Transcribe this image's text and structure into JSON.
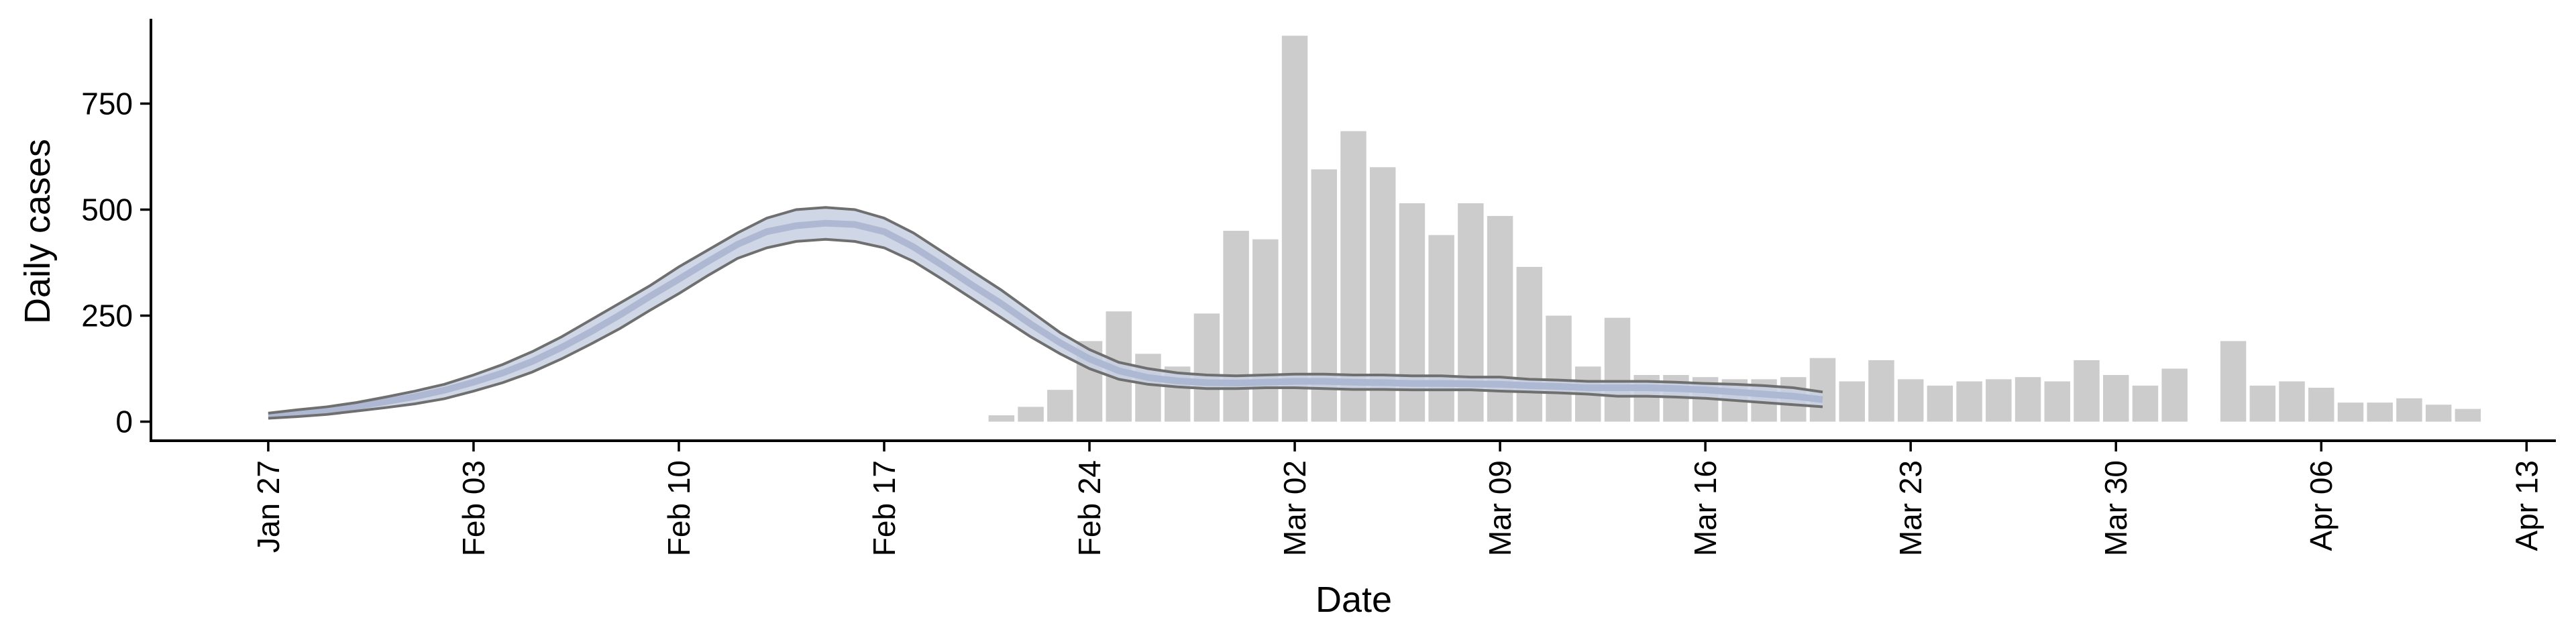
{
  "chart_data": {
    "type": "bar",
    "xlabel": "Date",
    "ylabel": "Daily cases",
    "x_ticks": [
      "Jan 27",
      "Feb 03",
      "Feb 10",
      "Feb 17",
      "Feb 24",
      "Mar 02",
      "Mar 09",
      "Mar 16",
      "Mar 23",
      "Mar 30",
      "Apr 06",
      "Apr 13"
    ],
    "xlim": [
      "2020-01-23",
      "2020-04-14"
    ],
    "y_ticks": [
      0,
      250,
      500,
      750
    ],
    "ylim": [
      -45,
      950
    ],
    "bars": {
      "start_date": "2020-02-21",
      "values": [
        15,
        35,
        75,
        190,
        260,
        160,
        130,
        255,
        450,
        430,
        910,
        595,
        685,
        600,
        515,
        440,
        515,
        485,
        365,
        250,
        130,
        245,
        110,
        110,
        105,
        100,
        100,
        105,
        150,
        95,
        145,
        100,
        85,
        95,
        100,
        105,
        95,
        145,
        110,
        85,
        125,
        0,
        190,
        85,
        95,
        80,
        45,
        45,
        55,
        40,
        30
      ]
    },
    "estimate": {
      "start_date": "2020-01-27",
      "upper": [
        20,
        28,
        35,
        45,
        58,
        72,
        88,
        110,
        135,
        165,
        200,
        240,
        280,
        320,
        365,
        405,
        445,
        480,
        500,
        505,
        500,
        480,
        445,
        400,
        355,
        310,
        260,
        210,
        170,
        140,
        125,
        115,
        110,
        108,
        110,
        112,
        112,
        110,
        110,
        108,
        108,
        105,
        105,
        100,
        98,
        95,
        95,
        95,
        93,
        90,
        88,
        85,
        80,
        70
      ],
      "median": [
        14,
        20,
        27,
        36,
        47,
        59,
        74,
        93,
        115,
        142,
        175,
        212,
        252,
        295,
        336,
        378,
        418,
        448,
        462,
        468,
        465,
        448,
        412,
        368,
        322,
        278,
        230,
        186,
        148,
        120,
        104,
        96,
        92,
        91,
        93,
        95,
        95,
        93,
        92,
        90,
        90,
        89,
        88,
        85,
        83,
        80,
        80,
        80,
        78,
        75,
        70,
        65,
        60,
        52
      ],
      "lower": [
        8,
        12,
        17,
        25,
        33,
        42,
        54,
        72,
        92,
        117,
        148,
        183,
        220,
        262,
        302,
        345,
        385,
        410,
        425,
        430,
        425,
        410,
        378,
        335,
        290,
        245,
        200,
        160,
        125,
        100,
        88,
        82,
        78,
        78,
        80,
        80,
        78,
        76,
        76,
        75,
        75,
        75,
        72,
        70,
        68,
        65,
        60,
        60,
        58,
        55,
        50,
        45,
        40,
        35
      ]
    }
  }
}
